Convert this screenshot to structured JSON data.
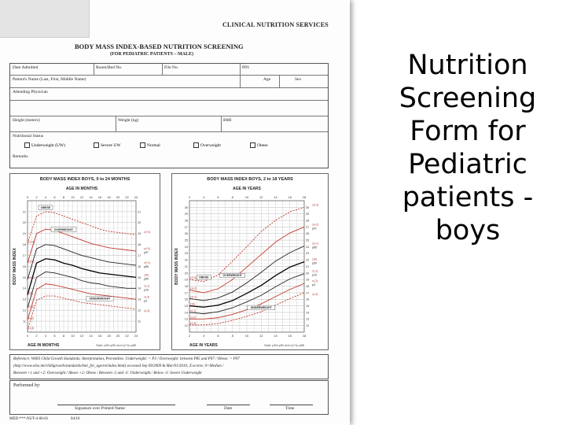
{
  "slide_title_lines": [
    "Nutrition",
    "Screening",
    "Form for",
    "Pediatric",
    "patients -",
    "boys"
  ],
  "form": {
    "org": "CLINICAL NUTRITION SERVICES",
    "title": "BODY MASS INDEX-BASED NUTRITION SCREENING",
    "subtitle": "(FOR PEDIATRIC PATIENTS – MALE)",
    "fields": {
      "date_admitted": "Date Admitted",
      "room_bed": "Room/Bed No.",
      "file_no": "File No.",
      "pin": "PIN",
      "patient_name": "Patient's Name (Last, First, Middle Name)",
      "age": "Age",
      "sex": "Sex",
      "attending": "Attending Physician",
      "height": "Height (meters)",
      "weight": "Weight (kg)",
      "bmi": "BMI",
      "status_label": "Nutritional Status",
      "remarks": "Remarks"
    },
    "status_options": [
      "Underweight (UW)",
      "Severe UW",
      "Normal",
      "Overweight",
      "Obese"
    ],
    "footer": {
      "performed_by": "Performed by:",
      "signature": "Signature over Printed Name",
      "date": "Date",
      "time": "Time",
      "code": "MED-***-NUT-4-06-01",
      "rev": "04/10"
    },
    "reference_lines": [
      "Reference: WHO Child Growth Standards; Interpretation, Percentiles: Underweight: < P3 / Overweight: between P85 and P97 / Obese: > P97",
      "(http://www.who.int/childgrowth/standards/bmi_for_age/en/index.html) accessed Sep 09/2009 & Mar/01/2010; Z-scores: 0=Median /",
      "Between +1 and +2: Overweight / Above +2: Obese / Between -2 and -3: Underweight / Below -3: Severe Underweight"
    ]
  },
  "chart_data": [
    {
      "type": "line",
      "title": "BODY MASS INDEX BOYS, 0 to 24 MONTHS",
      "x_top_label": "AGE IN MONTHS",
      "xlabel": "AGE IN MONTHS",
      "ylabel": "BODY MASS INDEX",
      "x": [
        0,
        2,
        4,
        6,
        8,
        10,
        12,
        14,
        16,
        18,
        20,
        22,
        24
      ],
      "xlim": [
        0,
        24
      ],
      "ylim": [
        10,
        22
      ],
      "y_ticks": [
        11,
        12,
        13,
        14,
        15,
        16,
        17,
        18,
        19,
        20,
        21
      ],
      "zones": [
        "OBESE",
        "OVERWEIGHT",
        "UNDERWEIGHT"
      ],
      "left_labels": [
        "z(+3)",
        "z(+2)",
        "z(+1)",
        "z(0)",
        "z(-1)",
        "z(-2)",
        "z(-3)"
      ],
      "right_labels": [
        "z(+3)",
        "p97",
        "z(+2)",
        "p85",
        "z(+1)",
        "p50",
        "z(0)",
        "p15",
        "z(-1)",
        "p3",
        "z(-2)",
        "z(-3)"
      ],
      "note": "Note: p50=p50 and z(+1)=p85",
      "series": [
        {
          "values": [
            18.1,
            20.6,
            21.0,
            20.9,
            20.6,
            20.3,
            20.0,
            19.7,
            19.4,
            19.2,
            19.1,
            19.0,
            18.9
          ]
        },
        {
          "values": [
            16.3,
            19.0,
            19.4,
            19.3,
            19.0,
            18.7,
            18.4,
            18.1,
            17.9,
            17.7,
            17.6,
            17.5,
            17.4
          ]
        },
        {
          "values": [
            14.8,
            17.6,
            18.0,
            17.9,
            17.6,
            17.3,
            17.0,
            16.8,
            16.6,
            16.4,
            16.3,
            16.2,
            16.1
          ]
        },
        {
          "values": [
            13.4,
            16.3,
            16.7,
            16.6,
            16.3,
            16.1,
            15.8,
            15.6,
            15.4,
            15.3,
            15.2,
            15.1,
            15.0
          ]
        },
        {
          "values": [
            12.2,
            15.0,
            15.5,
            15.4,
            15.2,
            15.0,
            14.7,
            14.5,
            14.4,
            14.2,
            14.1,
            14.0,
            14.0
          ]
        },
        {
          "values": [
            11.1,
            13.9,
            14.4,
            14.3,
            14.1,
            13.9,
            13.7,
            13.5,
            13.4,
            13.3,
            13.2,
            13.1,
            13.0
          ]
        },
        {
          "values": [
            10.2,
            12.9,
            13.3,
            13.3,
            13.1,
            12.9,
            12.7,
            12.6,
            12.5,
            12.4,
            12.3,
            12.2,
            12.1
          ]
        }
      ]
    },
    {
      "type": "line",
      "title": "BODY MASS INDEX BOYS, 2 to 18 YEARS",
      "x_top_label": "AGE IN YEARS",
      "xlabel": "AGE IN YEARS",
      "ylabel": "BODY MASS INDEX",
      "x": [
        2,
        4,
        6,
        8,
        10,
        12,
        14,
        16,
        18
      ],
      "xlim": [
        2,
        18
      ],
      "ylim": [
        11,
        31
      ],
      "y_ticks": [
        12,
        13,
        14,
        15,
        16,
        17,
        18,
        19,
        20,
        21,
        22,
        23,
        24,
        25,
        26,
        27,
        28,
        29,
        30
      ],
      "zones": [
        "OBESE",
        "OVERWEIGHT",
        "UNDERWEIGHT"
      ],
      "left_labels": [
        "z(+3)",
        "z(+2)",
        "z(+1)",
        "z(0)",
        "z(-1)",
        "z(-2)",
        "z(-3)"
      ],
      "right_labels": [
        "z(+3)",
        "p97",
        "z(+2)",
        "p85",
        "z(+1)",
        "p50",
        "z(0)",
        "p15",
        "z(-1)",
        "p3",
        "z(-2)",
        "z(-3)"
      ],
      "note": "Note: p50=p50 and z(+1)=p85",
      "series": [
        {
          "values": [
            19.0,
            18.7,
            19.7,
            21.8,
            24.0,
            26.3,
            28.0,
            29.3,
            30.0
          ]
        },
        {
          "values": [
            17.4,
            17.0,
            17.6,
            19.0,
            20.9,
            22.8,
            24.7,
            26.1,
            27.0
          ]
        },
        {
          "values": [
            16.1,
            15.8,
            16.2,
            17.1,
            18.5,
            20.1,
            21.8,
            23.1,
            24.1
          ]
        },
        {
          "values": [
            15.0,
            14.8,
            15.1,
            15.8,
            16.9,
            18.1,
            19.6,
            20.9,
            21.7
          ]
        },
        {
          "values": [
            14.0,
            13.8,
            14.1,
            14.7,
            15.6,
            16.6,
            17.9,
            19.1,
            19.9
          ]
        },
        {
          "values": [
            13.0,
            13.0,
            13.2,
            13.7,
            14.4,
            15.3,
            16.4,
            17.5,
            18.4
          ]
        },
        {
          "values": [
            12.1,
            12.1,
            12.3,
            12.8,
            13.4,
            14.1,
            15.1,
            16.1,
            17.0
          ]
        }
      ]
    }
  ]
}
